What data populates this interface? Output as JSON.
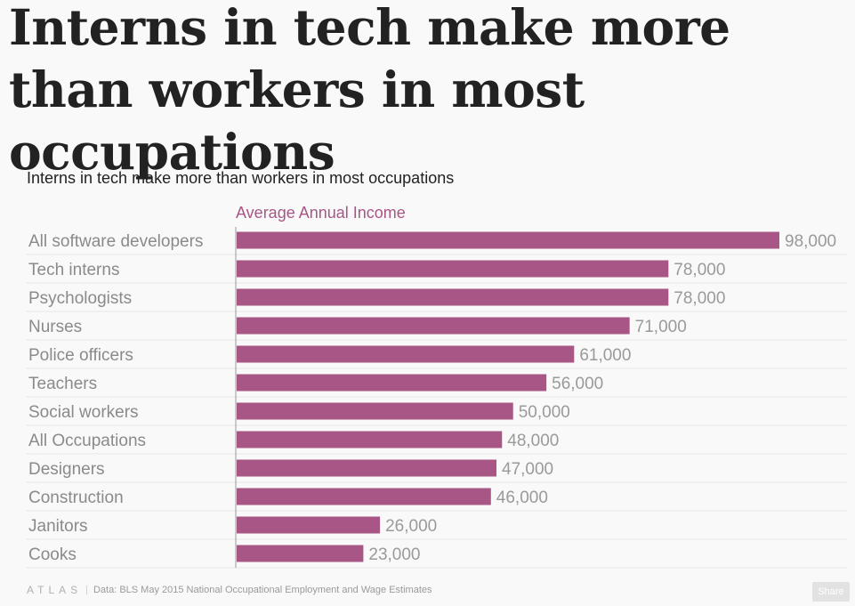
{
  "headline": "Interns in tech make more than workers in most occupations",
  "chart_data": {
    "type": "bar",
    "orientation": "horizontal",
    "title": "Interns in tech make more than workers in most occupations",
    "xlabel": "Average Annual Income",
    "ylabel": "",
    "xlim": [
      0,
      98000
    ],
    "categories": [
      "All software developers",
      "Tech interns",
      "Psychologists",
      "Nurses",
      "Police officers",
      "Teachers",
      "Social workers",
      "All Occupations",
      "Designers",
      "Construction",
      "Janitors",
      "Cooks"
    ],
    "values": [
      98000,
      78000,
      78000,
      71000,
      61000,
      56000,
      50000,
      48000,
      47000,
      46000,
      26000,
      23000
    ],
    "value_labels": [
      "98,000",
      "78,000",
      "78,000",
      "71,000",
      "61,000",
      "56,000",
      "50,000",
      "48,000",
      "47,000",
      "46,000",
      "26,000",
      "23,000"
    ],
    "bar_color": "#a85686",
    "grid": true
  },
  "footer": {
    "logo": "ATLAS",
    "source": "Data: BLS May 2015 National Occupational Employment and Wage Estimates"
  },
  "share_label": "Share"
}
